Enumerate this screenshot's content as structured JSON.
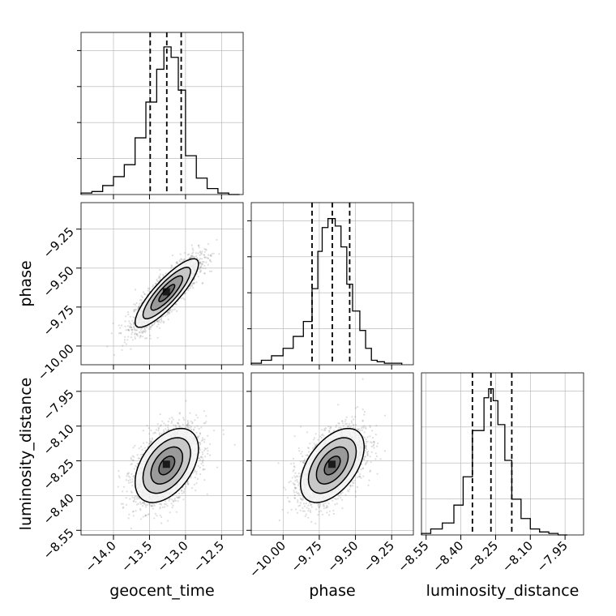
{
  "chart_data": [
    {
      "type": "histogram",
      "panel": "geocent_time marginal",
      "x": {
        "label": "geocent_time",
        "lim": [
          -14.45,
          -12.2
        ],
        "ticks": [
          "−14.0",
          "−13.5",
          "−13.0",
          "−12.5"
        ],
        "tick_values": [
          -14.0,
          -13.5,
          -13.0,
          -12.5
        ]
      },
      "bin_edges": [
        -14.45,
        -14.3,
        -14.15,
        -14.0,
        -13.85,
        -13.7,
        -13.55,
        -13.4,
        -13.3,
        -13.2,
        -13.1,
        -13.0,
        -12.85,
        -12.7,
        -12.55,
        -12.4,
        -12.25
      ],
      "counts": [
        0.01,
        0.02,
        0.06,
        0.12,
        0.2,
        0.38,
        0.62,
        0.84,
        0.99,
        0.92,
        0.7,
        0.26,
        0.11,
        0.04,
        0.01,
        0.0
      ],
      "quantile_lines": [
        -13.49,
        -13.26,
        -13.06
      ],
      "grid": true
    },
    {
      "type": "histogram",
      "panel": "phase marginal",
      "x": {
        "label": "phase",
        "lim": [
          -10.22,
          -9.1
        ],
        "ticks": [
          "−10.00",
          "−9.75",
          "−9.50",
          "−9.25"
        ],
        "tick_values": [
          -10.0,
          -9.75,
          -9.5,
          -9.25
        ]
      },
      "bin_edges": [
        -10.22,
        -10.15,
        -10.08,
        -10.0,
        -9.93,
        -9.86,
        -9.8,
        -9.76,
        -9.73,
        -9.69,
        -9.64,
        -9.6,
        -9.56,
        -9.52,
        -9.47,
        -9.43,
        -9.39,
        -9.35,
        -9.3,
        -9.24,
        -9.18
      ],
      "counts": [
        0.01,
        0.03,
        0.06,
        0.11,
        0.19,
        0.29,
        0.51,
        0.76,
        0.92,
        0.98,
        0.93,
        0.79,
        0.54,
        0.36,
        0.23,
        0.11,
        0.03,
        0.02,
        0.01,
        0.01
      ],
      "quantile_lines": [
        -9.8,
        -9.66,
        -9.54
      ],
      "grid": true
    },
    {
      "type": "histogram",
      "panel": "luminosity_distance marginal",
      "x": {
        "label": "luminosity_distance",
        "lim": [
          -8.57,
          -7.87
        ],
        "ticks": [
          "−8.55",
          "−8.40",
          "−8.25",
          "−8.10",
          "−7.95"
        ],
        "tick_values": [
          -8.55,
          -8.4,
          -8.25,
          -8.1,
          -7.95
        ]
      },
      "bin_edges": [
        -8.57,
        -8.53,
        -8.48,
        -8.43,
        -8.39,
        -8.35,
        -8.3,
        -8.28,
        -8.26,
        -8.24,
        -8.21,
        -8.18,
        -8.14,
        -8.1,
        -8.06,
        -8.02,
        -7.98,
        -7.94
      ],
      "counts": [
        0.01,
        0.04,
        0.08,
        0.2,
        0.39,
        0.7,
        0.92,
        0.98,
        0.9,
        0.74,
        0.5,
        0.24,
        0.11,
        0.04,
        0.02,
        0.01,
        0.0
      ],
      "quantile_lines": [
        -8.35,
        -8.27,
        -8.18
      ],
      "grid": true
    },
    {
      "type": "scatter",
      "panel": "phase vs geocent_time",
      "x": {
        "label": "geocent_time",
        "lim": [
          -14.45,
          -12.2
        ]
      },
      "y": {
        "label": "phase",
        "lim": [
          -10.12,
          -9.08
        ],
        "ticks": [
          "−10.00",
          "−9.75",
          "−9.50",
          "−9.25"
        ],
        "tick_values": [
          -10.0,
          -9.75,
          -9.5,
          -9.25
        ]
      },
      "center": [
        -13.26,
        -9.66
      ],
      "sd": [
        0.22,
        0.11
      ],
      "correlation": 0.85,
      "contours_sigma": [
        0.5,
        1.0,
        1.5,
        2.0
      ],
      "grid": true
    },
    {
      "type": "scatter",
      "panel": "luminosity_distance vs geocent_time",
      "x": {
        "label": "geocent_time",
        "lim": [
          -14.45,
          -12.2
        ]
      },
      "y": {
        "label": "luminosity_distance",
        "lim": [
          -8.57,
          -7.87
        ],
        "ticks": [
          "−8.55",
          "−8.40",
          "−8.25",
          "−8.10",
          "−7.95"
        ],
        "tick_values": [
          -8.55,
          -8.4,
          -8.25,
          -8.1,
          -7.95
        ]
      },
      "center": [
        -13.26,
        -8.27
      ],
      "sd": [
        0.22,
        0.08
      ],
      "correlation": 0.45,
      "contours_sigma": [
        0.5,
        1.0,
        1.5,
        2.0
      ],
      "grid": true
    },
    {
      "type": "scatter",
      "panel": "luminosity_distance vs phase",
      "x": {
        "label": "phase",
        "lim": [
          -10.22,
          -9.1
        ]
      },
      "y": {
        "label": "luminosity_distance",
        "lim": [
          -8.57,
          -7.87
        ]
      },
      "center": [
        -9.66,
        -8.27
      ],
      "sd": [
        0.11,
        0.08
      ],
      "correlation": 0.5,
      "contours_sigma": [
        0.5,
        1.0,
        1.5,
        2.0
      ],
      "grid": true
    }
  ],
  "labels": {
    "x": [
      "geocent_time",
      "phase",
      "luminosity_distance"
    ],
    "y": [
      "phase",
      "luminosity_distance"
    ]
  },
  "colors": {
    "line": "#000000",
    "grid": "#b0b0b0",
    "scatter": "#7a7a7a",
    "fill_dark": "#1a1a1a",
    "fill_mid": "#6e6e6e",
    "fill_light": "#c8c8c8"
  }
}
